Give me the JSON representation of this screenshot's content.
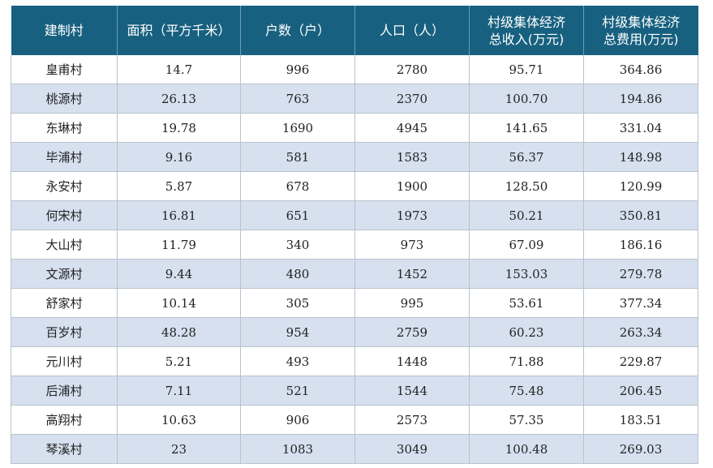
{
  "table": {
    "headers": [
      "建制村",
      "面积（平方千米）",
      "户数（户）",
      "人口（人）",
      "村级集体经济\n总收入(万元)",
      "村级集体经济\n总费用(万元)"
    ],
    "rows": [
      [
        "皇甫村",
        "14.7",
        "996",
        "2780",
        "95.71",
        "364.86"
      ],
      [
        "桃源村",
        "26.13",
        "763",
        "2370",
        "100.70",
        "194.86"
      ],
      [
        "东琳村",
        "19.78",
        "1690",
        "4945",
        "141.65",
        "331.04"
      ],
      [
        "毕浦村",
        "9.16",
        "581",
        "1583",
        "56.37",
        "148.98"
      ],
      [
        "永安村",
        "5.87",
        "678",
        "1900",
        "128.50",
        "120.99"
      ],
      [
        "何宋村",
        "16.81",
        "651",
        "1973",
        "50.21",
        "350.81"
      ],
      [
        "大山村",
        "11.79",
        "340",
        "973",
        "67.09",
        "186.16"
      ],
      [
        "文源村",
        "9.44",
        "480",
        "1452",
        "153.03",
        "279.78"
      ],
      [
        "舒家村",
        "10.14",
        "305",
        "995",
        "53.61",
        "377.34"
      ],
      [
        "百岁村",
        "48.28",
        "954",
        "2759",
        "60.23",
        "263.34"
      ],
      [
        "元川村",
        "5.21",
        "493",
        "1448",
        "71.88",
        "229.87"
      ],
      [
        "后浦村",
        "7.11",
        "521",
        "1544",
        "75.48",
        "206.45"
      ],
      [
        "高翔村",
        "10.63",
        "906",
        "2573",
        "57.35",
        "183.51"
      ],
      [
        "琴溪村",
        "23",
        "1083",
        "3049",
        "100.48",
        "269.03"
      ]
    ]
  },
  "colors": {
    "header_bg": "#17607f",
    "header_text": "#ffffff",
    "stripe_row": "#d6e0ef",
    "grid_line": "#b9c2cc"
  }
}
